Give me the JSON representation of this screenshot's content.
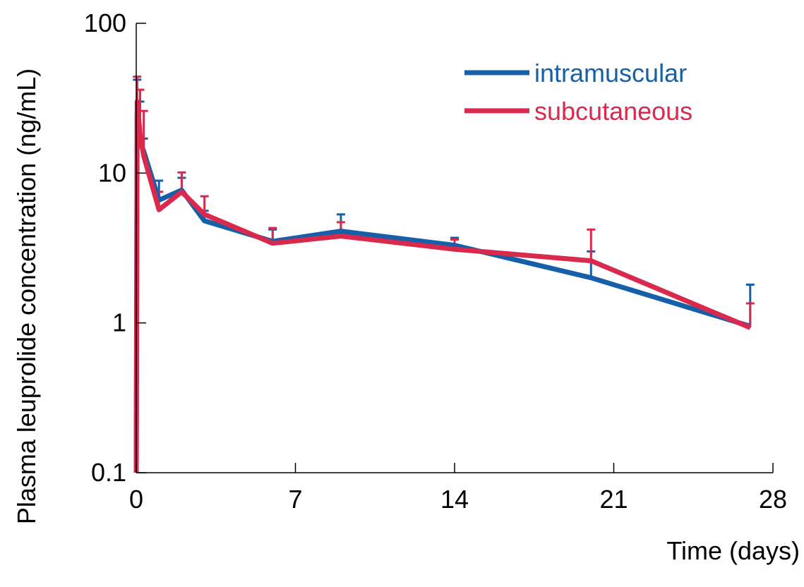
{
  "chart_data": {
    "type": "line",
    "xlabel": "Time (days)",
    "ylabel": "Plasma leuprolide concentration (ng/mL)",
    "yscale": "log",
    "ylim": [
      0.1,
      100
    ],
    "xlim": [
      0,
      28
    ],
    "xticks": [
      "0",
      "7",
      "14",
      "21",
      "28"
    ],
    "yticks": [
      "0.1",
      "1",
      "10",
      "100"
    ],
    "grid": false,
    "legend_position": "top-right",
    "series": [
      {
        "name": "intramuscular",
        "color": "#1560a8",
        "x": [
          0,
          0.04,
          0.17,
          0.33,
          1,
          2,
          3,
          6,
          9,
          14,
          20,
          27
        ],
        "y": [
          0.1,
          25,
          16,
          14,
          6.6,
          7.7,
          4.8,
          3.5,
          4.1,
          3.3,
          2.0,
          0.95
        ],
        "err_upper": [
          null,
          42,
          30,
          17,
          8.9,
          9.3,
          5.6,
          4.2,
          5.3,
          3.7,
          3.0,
          1.8
        ]
      },
      {
        "name": "subcutaneous",
        "color": "#d9294d",
        "x": [
          0,
          0.04,
          0.17,
          0.33,
          1,
          2,
          3,
          6,
          9,
          14,
          20,
          27
        ],
        "y": [
          0.1,
          30,
          18,
          13,
          5.7,
          7.5,
          5.3,
          3.4,
          3.8,
          3.1,
          2.6,
          0.93
        ],
        "err_upper": [
          null,
          44,
          36,
          26,
          7.5,
          10.1,
          7.0,
          4.3,
          4.7,
          3.6,
          4.2,
          1.35
        ]
      }
    ]
  }
}
